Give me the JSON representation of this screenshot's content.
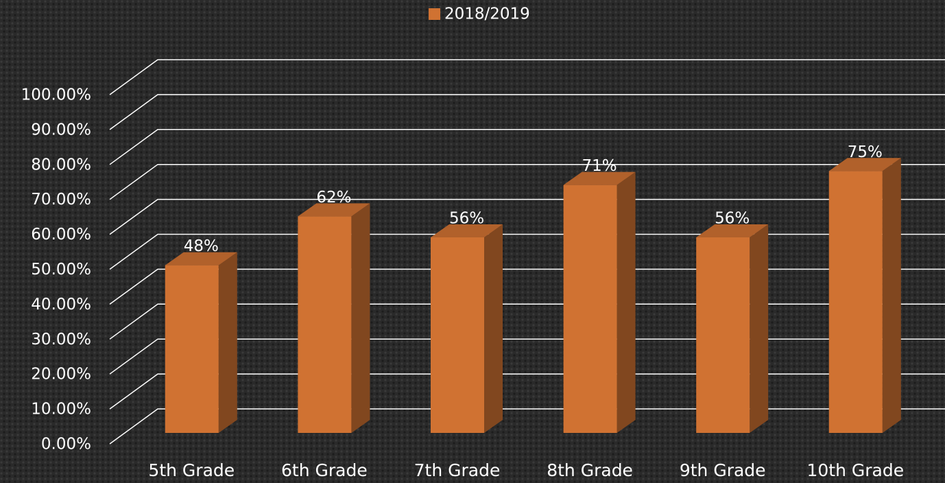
{
  "chart_data": {
    "type": "bar3d",
    "categories": [
      "5th Grade",
      "6th Grade",
      "7th Grade",
      "8th Grade",
      "9th Grade",
      "10th Grade"
    ],
    "series": [
      {
        "name": "2018/2019",
        "color": "#d07232",
        "values": [
          48,
          62,
          56,
          71,
          56,
          75
        ],
        "value_labels": [
          "48%",
          "62%",
          "56%",
          "71%",
          "56%",
          "75%"
        ]
      }
    ],
    "ylim": [
      0,
      100
    ],
    "yticks": [
      {
        "value": 0,
        "label": "0.00%"
      },
      {
        "value": 10,
        "label": "10.00%"
      },
      {
        "value": 20,
        "label": "20.00%"
      },
      {
        "value": 30,
        "label": "30.00%"
      },
      {
        "value": 40,
        "label": "40.00%"
      },
      {
        "value": 50,
        "label": "50.00%"
      },
      {
        "value": 60,
        "label": "60.00%"
      },
      {
        "value": 70,
        "label": "70.00%"
      },
      {
        "value": 80,
        "label": "80.00%"
      },
      {
        "value": 90,
        "label": "90.00%"
      },
      {
        "value": 100,
        "label": "100.00%"
      }
    ],
    "grid": true,
    "legend": "top"
  }
}
